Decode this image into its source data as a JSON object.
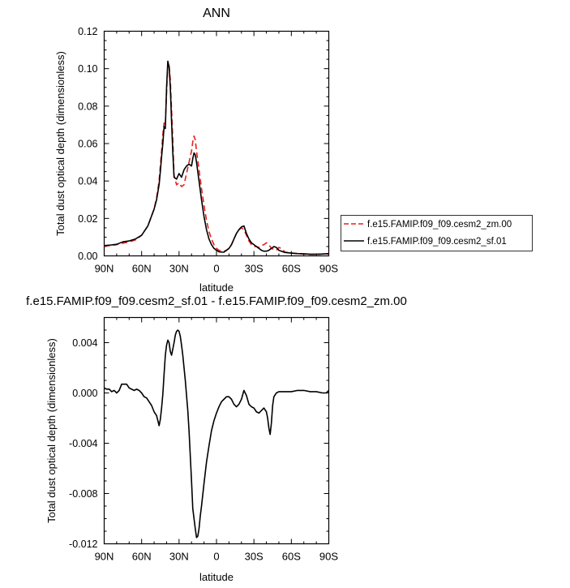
{
  "chart_data": [
    {
      "type": "line",
      "title": "ANN",
      "xlabel": "latitude",
      "ylabel": "Total dust optical depth (dimensionless)",
      "xlim": [
        90,
        -90
      ],
      "ylim": [
        0,
        0.12
      ],
      "x_ticks": [
        90,
        60,
        30,
        0,
        -30,
        -60,
        -90
      ],
      "x_tick_labels": [
        "90N",
        "60N",
        "30N",
        "0",
        "30S",
        "60S",
        "90S"
      ],
      "y_ticks": [
        0,
        0.02,
        0.04,
        0.06,
        0.08,
        0.1,
        0.12
      ],
      "y_tick_labels": [
        "0.00",
        "0.02",
        "0.04",
        "0.06",
        "0.08",
        "0.10",
        "0.12"
      ],
      "legend_position": "outside-right",
      "series": [
        {
          "name": "f.e15.FAMIP.f09_f09.cesm2_zm.00",
          "color": "#e8201c",
          "dash": "dashed",
          "x": [
            90,
            85,
            80,
            75,
            70,
            65,
            60,
            55,
            50,
            48,
            46,
            45,
            44,
            43,
            42,
            41,
            40,
            39,
            38,
            37,
            36,
            35,
            34,
            32,
            30,
            28,
            26,
            24,
            22,
            20,
            19,
            18,
            17,
            16,
            14,
            12,
            10,
            8,
            6,
            4,
            2,
            0,
            -2,
            -4,
            -6,
            -8,
            -10,
            -12,
            -14,
            -16,
            -18,
            -20,
            -22,
            -24,
            -26,
            -28,
            -30,
            -32,
            -34,
            -36,
            -38,
            -40,
            -42,
            -44,
            -46,
            -48,
            -50,
            -52,
            -55,
            -60,
            -65,
            -70,
            -75,
            -80,
            -85,
            -90
          ],
          "y": [
            0.0052,
            0.0055,
            0.006,
            0.0068,
            0.0075,
            0.0085,
            0.011,
            0.016,
            0.025,
            0.031,
            0.04,
            0.048,
            0.056,
            0.065,
            0.071,
            0.07,
            0.087,
            0.103,
            0.102,
            0.094,
            0.078,
            0.062,
            0.043,
            0.038,
            0.039,
            0.037,
            0.038,
            0.044,
            0.05,
            0.056,
            0.061,
            0.064,
            0.062,
            0.056,
            0.046,
            0.036,
            0.027,
            0.019,
            0.013,
            0.009,
            0.006,
            0.004,
            0.003,
            0.0025,
            0.0025,
            0.003,
            0.004,
            0.006,
            0.009,
            0.012,
            0.014,
            0.015,
            0.014,
            0.011,
            0.008,
            0.006,
            0.005,
            0.005,
            0.0045,
            0.0055,
            0.006,
            0.007,
            0.006,
            0.004,
            0.0035,
            0.003,
            0.0045,
            0.004,
            0.002,
            0.0015,
            0.0012,
            0.001,
            0.0008,
            0.0008,
            0.001,
            0.001
          ]
        },
        {
          "name": "f.e15.FAMIP.f09_f09.cesm2_sf.01",
          "color": "#000000",
          "dash": "solid",
          "x": [
            90,
            85,
            80,
            75,
            70,
            65,
            60,
            55,
            50,
            48,
            46,
            45,
            44,
            43,
            42,
            41,
            40,
            39,
            38,
            37,
            36,
            35,
            34,
            32,
            30,
            28,
            26,
            24,
            22,
            20,
            19,
            18,
            17,
            16,
            14,
            12,
            10,
            8,
            6,
            4,
            2,
            0,
            -2,
            -4,
            -6,
            -8,
            -10,
            -12,
            -14,
            -16,
            -18,
            -20,
            -22,
            -24,
            -26,
            -28,
            -30,
            -32,
            -34,
            -36,
            -38,
            -40,
            -42,
            -44,
            -46,
            -48,
            -50,
            -52,
            -55,
            -60,
            -65,
            -70,
            -75,
            -80,
            -85,
            -90
          ],
          "y": [
            0.0055,
            0.0058,
            0.0062,
            0.0075,
            0.008,
            0.009,
            0.011,
            0.016,
            0.025,
            0.03,
            0.038,
            0.045,
            0.053,
            0.06,
            0.069,
            0.068,
            0.09,
            0.104,
            0.101,
            0.09,
            0.072,
            0.055,
            0.042,
            0.041,
            0.044,
            0.042,
            0.046,
            0.048,
            0.049,
            0.048,
            0.052,
            0.055,
            0.054,
            0.05,
            0.04,
            0.03,
            0.021,
            0.014,
            0.009,
            0.006,
            0.004,
            0.003,
            0.0022,
            0.002,
            0.002,
            0.003,
            0.004,
            0.006,
            0.009,
            0.012,
            0.014,
            0.0155,
            0.016,
            0.012,
            0.009,
            0.007,
            0.006,
            0.005,
            0.004,
            0.003,
            0.0025,
            0.0025,
            0.003,
            0.004,
            0.005,
            0.0045,
            0.003,
            0.0025,
            0.0018,
            0.0015,
            0.0012,
            0.0011,
            0.0009,
            0.0009,
            0.001,
            0.0012
          ]
        }
      ]
    },
    {
      "type": "line",
      "title": "f.e15.FAMIP.f09_f09.cesm2_sf.01 - f.e15.FAMIP.f09_f09.cesm2_zm.00",
      "xlabel": "latitude",
      "ylabel": "Total dust optical depth (dimensionless)",
      "xlim": [
        90,
        -90
      ],
      "ylim": [
        -0.012,
        0.006
      ],
      "x_ticks": [
        90,
        60,
        30,
        0,
        -30,
        -60,
        -90
      ],
      "x_tick_labels": [
        "90N",
        "60N",
        "30N",
        "0",
        "30S",
        "60S",
        "90S"
      ],
      "y_ticks": [
        -0.012,
        -0.008,
        -0.004,
        0.0,
        0.004
      ],
      "y_tick_labels": [
        "-0.012",
        "-0.008",
        "-0.004",
        "0.000",
        "0.004"
      ],
      "series": [
        {
          "color": "#000000",
          "dash": "solid",
          "x": [
            90,
            88,
            86,
            84,
            82,
            80,
            78,
            76,
            74,
            72,
            70,
            68,
            66,
            64,
            62,
            60,
            58,
            56,
            54,
            52,
            50,
            48,
            47,
            46,
            45,
            44,
            43,
            42,
            41,
            40,
            39,
            38,
            37,
            36,
            35,
            34,
            33,
            32,
            31,
            30,
            29,
            28,
            27,
            26,
            25,
            24,
            23,
            22,
            21,
            20,
            19,
            18,
            17,
            16,
            15,
            14,
            13,
            12,
            10,
            8,
            6,
            4,
            2,
            0,
            -2,
            -4,
            -6,
            -8,
            -10,
            -12,
            -14,
            -16,
            -18,
            -20,
            -22,
            -24,
            -26,
            -28,
            -30,
            -32,
            -34,
            -36,
            -38,
            -40,
            -41,
            -42,
            -43,
            -44,
            -45,
            -46,
            -48,
            -50,
            -55,
            -60,
            -65,
            -70,
            -75,
            -80,
            -85,
            -88,
            -90
          ],
          "y": [
            0.0004,
            0.0003,
            0.0003,
            0.0001,
            0.0002,
            0.0,
            0.0002,
            0.0007,
            0.0007,
            0.0007,
            0.0004,
            0.0003,
            0.0002,
            0.0003,
            0.0002,
            0.0,
            -0.0003,
            -0.0004,
            -0.0007,
            -0.001,
            -0.0015,
            -0.0018,
            -0.0022,
            -0.0026,
            -0.0021,
            -0.0012,
            -0.0001,
            0.0015,
            0.003,
            0.0038,
            0.0042,
            0.004,
            0.0033,
            0.003,
            0.0035,
            0.004,
            0.0046,
            0.0049,
            0.005,
            0.0049,
            0.0045,
            0.0038,
            0.003,
            0.002,
            0.001,
            -0.0002,
            -0.0014,
            -0.003,
            -0.005,
            -0.007,
            -0.0092,
            -0.01,
            -0.0108,
            -0.0115,
            -0.0114,
            -0.0108,
            -0.0098,
            -0.009,
            -0.0072,
            -0.0055,
            -0.0042,
            -0.003,
            -0.0022,
            -0.0016,
            -0.0011,
            -0.0007,
            -0.0005,
            -0.0003,
            -0.0003,
            -0.0005,
            -0.0009,
            -0.0011,
            -0.0009,
            -0.0005,
            0.0002,
            -0.0002,
            -0.0009,
            -0.0011,
            -0.0012,
            -0.0015,
            -0.0016,
            -0.0014,
            -0.0012,
            -0.0015,
            -0.002,
            -0.0028,
            -0.0033,
            -0.0024,
            -0.001,
            -0.0003,
            0.0,
            0.0001,
            0.0001,
            0.0001,
            0.0002,
            0.0002,
            0.0001,
            0.0001,
            0.0,
            0.0,
            0.0002
          ]
        }
      ]
    }
  ]
}
